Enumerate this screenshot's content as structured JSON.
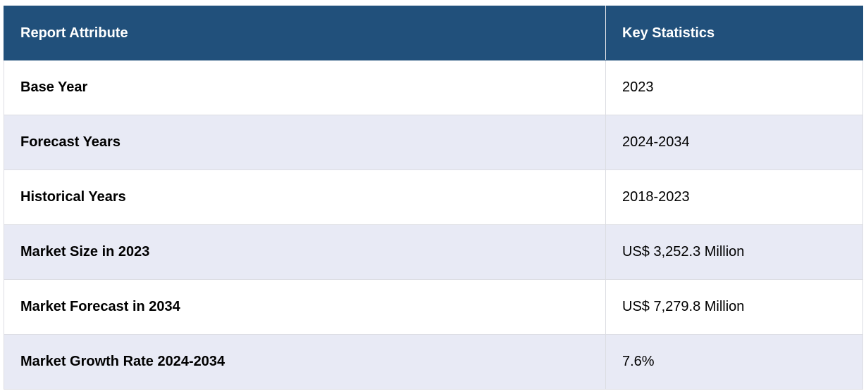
{
  "table": {
    "header": [
      "Report Attribute",
      "Key Statistics"
    ],
    "rows": [
      [
        "Base Year",
        "2023"
      ],
      [
        "Forecast Years",
        "2024-2034"
      ],
      [
        "Historical Years",
        "2018-2023"
      ],
      [
        "Market Size in 2023",
        "US$ 3,252.3 Million"
      ],
      [
        "Market Forecast in 2034",
        "US$ 7,279.8 Million"
      ],
      [
        "Market Growth Rate 2024-2034",
        "7.6%"
      ]
    ]
  }
}
